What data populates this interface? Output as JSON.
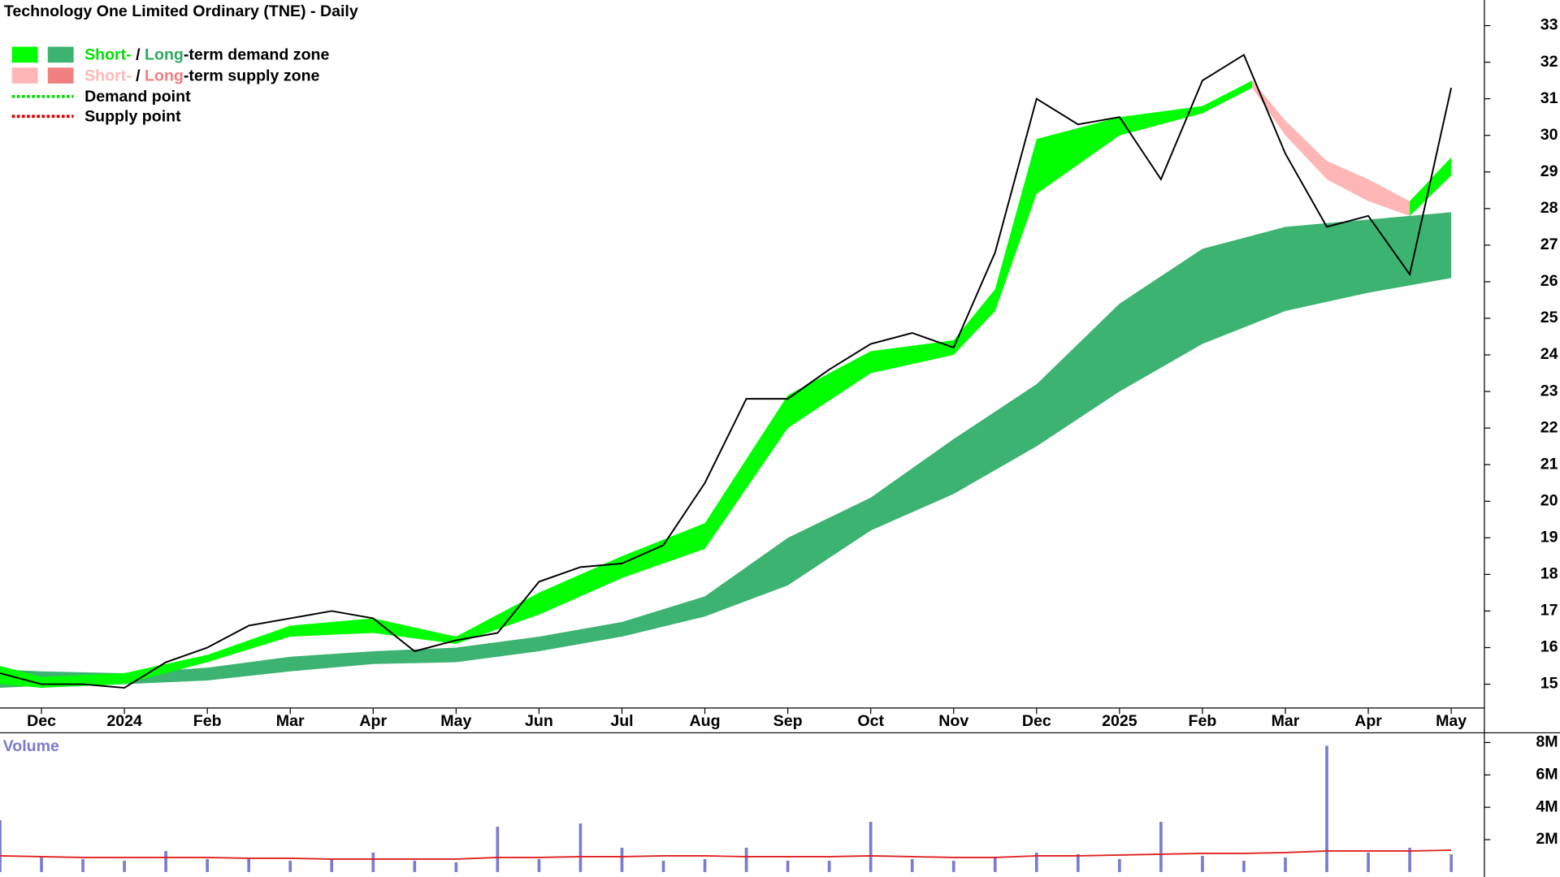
{
  "chart_data": [
    {
      "type": "line",
      "title": "Technology One Limited Ordinary (TNE) - Daily",
      "legend": [
        {
          "parts": [
            "Short-",
            " / ",
            "Long",
            "-term demand zone"
          ]
        },
        {
          "parts": [
            "Short-",
            " / ",
            "Long",
            "-term supply zone"
          ]
        },
        {
          "parts": [
            "Demand point"
          ]
        },
        {
          "parts": [
            "Supply point"
          ]
        }
      ],
      "x": [
        -0.5,
        0,
        0.5,
        1,
        1.5,
        2,
        2.5,
        3,
        3.5,
        4,
        4.5,
        5,
        5.5,
        6,
        6.5,
        7,
        7.5,
        8,
        8.5,
        9,
        9.5,
        10,
        10.5,
        11,
        11.5,
        12,
        12.5,
        13,
        13.5,
        14,
        14.5,
        15,
        15.5,
        16,
        16.5,
        17
      ],
      "series": [
        {
          "color": "#000000",
          "values": [
            15.3,
            15.0,
            15.0,
            14.9,
            15.6,
            16.0,
            16.6,
            16.8,
            17.0,
            16.8,
            15.9,
            16.2,
            16.4,
            17.8,
            18.2,
            18.3,
            18.8,
            20.5,
            22.8,
            22.8,
            23.6,
            24.3,
            24.6,
            24.2,
            26.8,
            31.0,
            30.3,
            30.5,
            28.8,
            31.5,
            32.2,
            29.5,
            27.5,
            27.8,
            26.2,
            31.3
          ]
        }
      ],
      "zones": [
        {
          "color": "#3cb371",
          "x": [
            -0.5,
            0,
            1,
            2,
            3,
            4,
            5,
            6,
            7,
            8,
            9,
            10,
            11,
            12,
            13,
            14,
            15,
            16,
            17
          ],
          "lower": [
            14.9,
            14.95,
            15.0,
            15.1,
            15.35,
            15.55,
            15.6,
            15.9,
            16.3,
            16.85,
            17.7,
            19.2,
            20.2,
            21.5,
            23.0,
            24.3,
            25.2,
            25.7,
            26.1
          ],
          "upper": [
            15.4,
            15.35,
            15.3,
            15.45,
            15.75,
            15.9,
            16.0,
            16.3,
            16.7,
            17.4,
            19.0,
            20.1,
            21.7,
            23.2,
            25.4,
            26.9,
            27.5,
            27.7,
            27.9
          ]
        },
        {
          "color": "#00ff00",
          "x": [
            -0.5,
            0,
            1,
            2,
            3,
            4,
            5,
            6,
            7,
            8,
            9,
            10,
            11,
            11.5,
            12,
            13,
            14,
            14.6
          ],
          "lower": [
            15.0,
            14.9,
            15.0,
            15.6,
            16.3,
            16.4,
            16.1,
            16.9,
            17.9,
            18.7,
            22.0,
            23.5,
            24.0,
            25.2,
            28.4,
            30.0,
            30.6,
            31.3
          ],
          "upper": [
            15.5,
            15.2,
            15.3,
            15.8,
            16.6,
            16.8,
            16.3,
            17.5,
            18.5,
            19.4,
            22.9,
            24.1,
            24.4,
            25.8,
            29.9,
            30.5,
            30.8,
            31.5
          ]
        },
        {
          "color": "#ffb6b6",
          "x": [
            14.6,
            15,
            15.5,
            16,
            16.5
          ],
          "lower": [
            31.3,
            30.0,
            28.8,
            28.2,
            27.8
          ],
          "upper": [
            31.5,
            30.4,
            29.3,
            28.8,
            28.2
          ]
        },
        {
          "color": "#00ff00",
          "x": [
            16.5,
            17
          ],
          "lower": [
            27.8,
            28.9
          ],
          "upper": [
            28.2,
            29.4
          ]
        }
      ],
      "xlim": [
        -0.5,
        17.4
      ],
      "xticks": [
        {
          "value": 0,
          "label": "Dec"
        },
        {
          "value": 1,
          "label": "2024"
        },
        {
          "value": 2,
          "label": "Feb"
        },
        {
          "value": 3,
          "label": "Mar"
        },
        {
          "value": 4,
          "label": "Apr"
        },
        {
          "value": 5,
          "label": "May"
        },
        {
          "value": 6,
          "label": "Jun"
        },
        {
          "value": 7,
          "label": "Jul"
        },
        {
          "value": 8,
          "label": "Aug"
        },
        {
          "value": 9,
          "label": "Sep"
        },
        {
          "value": 10,
          "label": "Oct"
        },
        {
          "value": 11,
          "label": "Nov"
        },
        {
          "value": 12,
          "label": "Dec"
        },
        {
          "value": 13,
          "label": "2025"
        },
        {
          "value": 14,
          "label": "Feb"
        },
        {
          "value": 15,
          "label": "Mar"
        },
        {
          "value": 16,
          "label": "Apr"
        },
        {
          "value": 17,
          "label": "May"
        }
      ],
      "ylim": [
        14.35,
        33.7
      ],
      "yticks": [
        15,
        16,
        17,
        18,
        19,
        20,
        21,
        22,
        23,
        24,
        25,
        26,
        27,
        28,
        29,
        30,
        31,
        32,
        33
      ]
    },
    {
      "type": "bar",
      "title": "Volume",
      "color": "#7b7bd0",
      "ma_color": "#e02020",
      "x": [
        -0.5,
        0,
        0.5,
        1,
        1.5,
        2,
        2.5,
        3,
        3.5,
        4,
        4.5,
        5,
        5.5,
        6,
        6.5,
        7,
        7.5,
        8,
        8.5,
        9,
        9.5,
        10,
        10.5,
        11,
        11.5,
        12,
        12.5,
        13,
        13.5,
        14,
        14.5,
        15,
        15.5,
        16,
        16.5,
        17
      ],
      "values": [
        3200000,
        900000,
        800000,
        700000,
        1300000,
        800000,
        900000,
        700000,
        800000,
        1200000,
        700000,
        600000,
        2800000,
        800000,
        3000000,
        1500000,
        700000,
        800000,
        1500000,
        700000,
        700000,
        3100000,
        800000,
        700000,
        900000,
        1200000,
        1100000,
        800000,
        3100000,
        1000000,
        700000,
        900000,
        7800000,
        1200000,
        1500000,
        1100000
      ],
      "ma": [
        1000000,
        950000,
        900000,
        900000,
        900000,
        900000,
        850000,
        850000,
        800000,
        800000,
        800000,
        800000,
        900000,
        900000,
        950000,
        950000,
        1000000,
        1000000,
        950000,
        950000,
        950000,
        1000000,
        950000,
        900000,
        900000,
        1000000,
        1000000,
        1050000,
        1100000,
        1150000,
        1150000,
        1200000,
        1300000,
        1300000,
        1300000,
        1350000
      ],
      "xlim": [
        -0.5,
        17.4
      ],
      "ylim": [
        0,
        8600000
      ],
      "yticks": [
        {
          "value": 2000000,
          "label": "2M"
        },
        {
          "value": 4000000,
          "label": "4M"
        },
        {
          "value": 6000000,
          "label": "6M"
        },
        {
          "value": 8000000,
          "label": "8M"
        }
      ]
    }
  ]
}
